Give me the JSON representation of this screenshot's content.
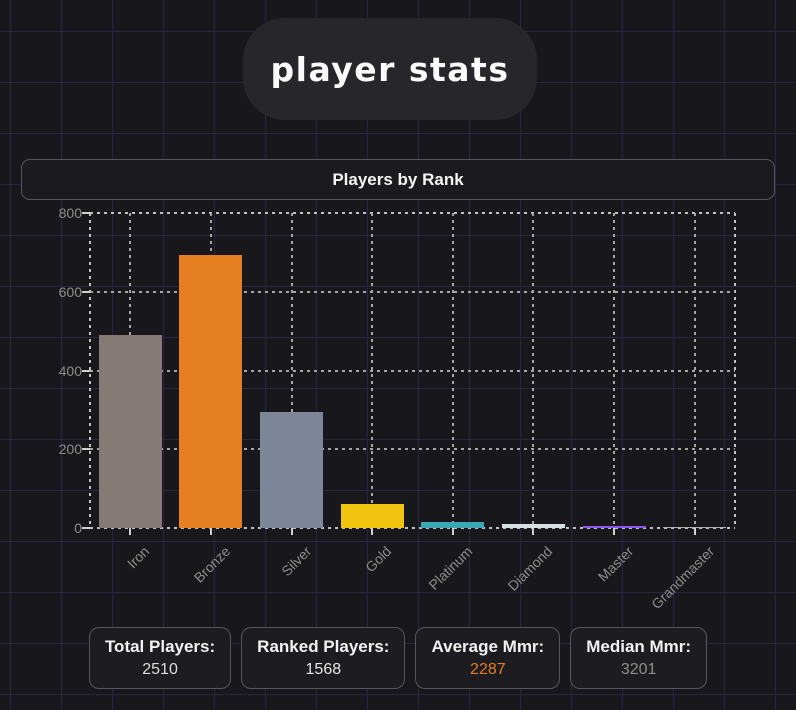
{
  "header": {
    "title": "player stats"
  },
  "chart_header": {
    "title": "Players by Rank"
  },
  "chart_data": {
    "type": "bar",
    "title": "Players by Rank",
    "categories": [
      "Iron",
      "Bronze",
      "Silver",
      "Gold",
      "Platinum",
      "Diamond",
      "Master",
      "Grandmaster"
    ],
    "values": [
      489,
      693,
      294,
      60,
      14,
      9,
      6,
      3
    ],
    "colors": [
      "#847a76",
      "#e67e22",
      "#7e8799",
      "#f1c40f",
      "#3ba8b3",
      "#d6dfe2",
      "#8d55f0",
      "#b0b0b0"
    ],
    "xlabel": "",
    "ylabel": "",
    "ylim": [
      0,
      800
    ],
    "yticks": [
      0,
      200,
      400,
      600,
      800
    ],
    "grid": true,
    "grid_style": "dashed",
    "legend": "none",
    "tick_color": "#8d8d8d",
    "gridline_color": "#a6a6a6"
  },
  "stats": [
    {
      "label": "Total Players:",
      "value": "2510",
      "value_color": "#dcdcdc"
    },
    {
      "label": "Ranked Players:",
      "value": "1568",
      "value_color": "#e8e8e8"
    },
    {
      "label": "Average Mmr:",
      "value": "2287",
      "value_color": "#e67e22"
    },
    {
      "label": "Median Mmr:",
      "value": "3201",
      "value_color": "#8f8f8f"
    }
  ]
}
